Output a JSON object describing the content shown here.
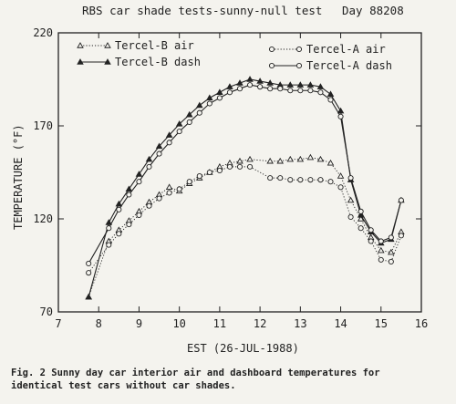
{
  "chart_data": {
    "type": "line",
    "title": "RBS car shade tests-sunny-null test",
    "day_label": "Day 88208",
    "xlabel": "EST (26-JUL-1988)",
    "ylabel": "TEMPERATURE (°F)",
    "xlim": [
      7,
      16
    ],
    "ylim": [
      70,
      220
    ],
    "x_ticks": [
      "7",
      "8",
      "9",
      "10",
      "11",
      "12",
      "13",
      "14",
      "15",
      "16"
    ],
    "y_ticks": [
      "70",
      "120",
      "170",
      "220"
    ],
    "grid": false,
    "legend_position": "top",
    "series": [
      {
        "name": "Tercel-B air",
        "marker": "triangle-open",
        "line": "dotted",
        "points": [
          [
            7.75,
            78
          ],
          [
            8.25,
            108
          ],
          [
            8.5,
            114
          ],
          [
            8.75,
            119
          ],
          [
            9,
            124
          ],
          [
            9.25,
            129
          ],
          [
            9.5,
            133
          ],
          [
            9.75,
            137
          ],
          [
            10,
            135
          ],
          [
            10.25,
            139
          ],
          [
            10.5,
            142
          ],
          [
            10.75,
            145
          ],
          [
            11,
            148
          ],
          [
            11.25,
            150
          ],
          [
            11.5,
            151
          ],
          [
            11.75,
            152
          ],
          [
            12.25,
            151
          ],
          [
            12.5,
            151
          ],
          [
            12.75,
            152
          ],
          [
            13,
            152
          ],
          [
            13.25,
            153
          ],
          [
            13.5,
            152
          ],
          [
            13.75,
            150
          ],
          [
            14,
            143
          ],
          [
            14.25,
            130
          ],
          [
            14.5,
            120
          ],
          [
            14.75,
            110
          ],
          [
            15,
            103
          ],
          [
            15.25,
            102
          ],
          [
            15.5,
            113
          ]
        ]
      },
      {
        "name": "Tercel-B dash",
        "marker": "triangle-filled",
        "line": "solid",
        "points": [
          [
            7.75,
            78
          ],
          [
            8.25,
            118
          ],
          [
            8.5,
            128
          ],
          [
            8.75,
            136
          ],
          [
            9,
            144
          ],
          [
            9.25,
            152
          ],
          [
            9.5,
            159
          ],
          [
            9.75,
            165
          ],
          [
            10,
            171
          ],
          [
            10.25,
            176
          ],
          [
            10.5,
            181
          ],
          [
            10.75,
            185
          ],
          [
            11,
            188
          ],
          [
            11.25,
            191
          ],
          [
            11.5,
            193
          ],
          [
            11.75,
            195
          ],
          [
            12,
            194
          ],
          [
            12.25,
            193
          ],
          [
            12.5,
            192
          ],
          [
            12.75,
            192
          ],
          [
            13,
            192
          ],
          [
            13.25,
            192
          ],
          [
            13.5,
            191
          ],
          [
            13.75,
            187
          ],
          [
            14,
            178
          ],
          [
            14.25,
            141
          ],
          [
            14.5,
            122
          ],
          [
            14.75,
            113
          ],
          [
            15,
            107
          ],
          [
            15.25,
            109
          ],
          [
            15.5,
            130
          ]
        ]
      },
      {
        "name": "Tercel-A air",
        "marker": "circle-open",
        "line": "dotted",
        "points": [
          [
            7.75,
            91
          ],
          [
            8.25,
            106
          ],
          [
            8.5,
            112
          ],
          [
            8.75,
            117
          ],
          [
            9,
            122
          ],
          [
            9.25,
            127
          ],
          [
            9.5,
            131
          ],
          [
            9.75,
            134
          ],
          [
            10,
            136
          ],
          [
            10.25,
            140
          ],
          [
            10.5,
            143
          ],
          [
            10.75,
            145
          ],
          [
            11,
            146
          ],
          [
            11.25,
            148
          ],
          [
            11.5,
            148
          ],
          [
            11.75,
            148
          ],
          [
            12.25,
            142
          ],
          [
            12.5,
            142
          ],
          [
            12.75,
            141
          ],
          [
            13,
            141
          ],
          [
            13.25,
            141
          ],
          [
            13.5,
            141
          ],
          [
            13.75,
            140
          ],
          [
            14,
            137
          ],
          [
            14.25,
            121
          ],
          [
            14.5,
            115
          ],
          [
            14.75,
            108
          ],
          [
            15,
            98
          ],
          [
            15.25,
            97
          ],
          [
            15.5,
            111
          ]
        ]
      },
      {
        "name": "Tercel-A dash",
        "marker": "circle-open",
        "line": "solid",
        "points": [
          [
            7.75,
            96
          ],
          [
            8.25,
            115
          ],
          [
            8.5,
            125
          ],
          [
            8.75,
            133
          ],
          [
            9,
            140
          ],
          [
            9.25,
            148
          ],
          [
            9.5,
            155
          ],
          [
            9.75,
            161
          ],
          [
            10,
            167
          ],
          [
            10.25,
            172
          ],
          [
            10.5,
            177
          ],
          [
            10.75,
            182
          ],
          [
            11,
            185
          ],
          [
            11.25,
            188
          ],
          [
            11.5,
            190
          ],
          [
            11.75,
            192
          ],
          [
            12,
            191
          ],
          [
            12.25,
            190
          ],
          [
            12.5,
            190
          ],
          [
            12.75,
            189
          ],
          [
            13,
            189
          ],
          [
            13.25,
            189
          ],
          [
            13.5,
            188
          ],
          [
            13.75,
            184
          ],
          [
            14,
            175
          ],
          [
            14.25,
            142
          ],
          [
            14.5,
            124
          ],
          [
            14.75,
            114
          ],
          [
            15,
            108
          ],
          [
            15.25,
            110
          ],
          [
            15.5,
            130
          ]
        ]
      }
    ]
  },
  "caption": {
    "line1": "Fig. 2  Sunny day car interior air and dashboard temperatures for",
    "line2": "identical test cars without car shades."
  }
}
